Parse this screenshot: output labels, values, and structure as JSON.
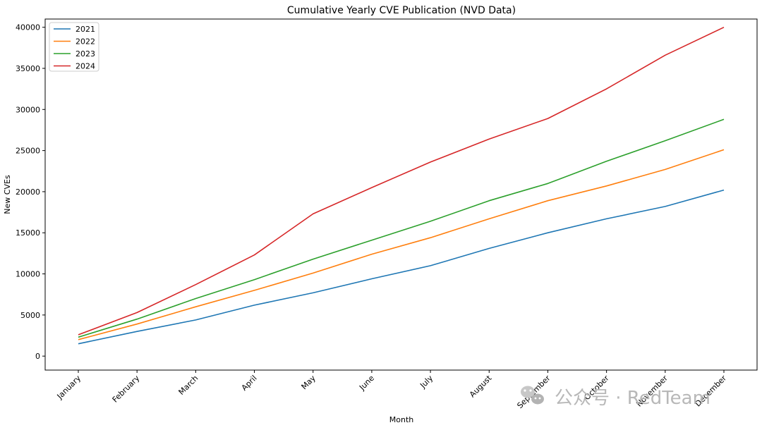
{
  "chart_data": {
    "type": "line",
    "title": "Cumulative Yearly CVE Publication (NVD Data)",
    "xlabel": "Month",
    "ylabel": "New CVEs",
    "categories": [
      "January",
      "February",
      "March",
      "April",
      "May",
      "June",
      "July",
      "August",
      "September",
      "October",
      "November",
      "December"
    ],
    "ylim": [
      -1700,
      41000
    ],
    "yticks": [
      0,
      5000,
      10000,
      15000,
      20000,
      25000,
      30000,
      35000,
      40000
    ],
    "grid": false,
    "legend_position": "top-left",
    "series": [
      {
        "name": "2021",
        "color": "#1f77b4",
        "values": [
          1500,
          3000,
          4400,
          6200,
          7700,
          9400,
          11000,
          13100,
          15000,
          16700,
          18200,
          20200
        ]
      },
      {
        "name": "2022",
        "color": "#ff7f0e",
        "values": [
          2000,
          3900,
          6000,
          8000,
          10100,
          12400,
          14400,
          16700,
          18900,
          20700,
          22700,
          25100
        ]
      },
      {
        "name": "2023",
        "color": "#2ca02c",
        "values": [
          2300,
          4500,
          7000,
          9300,
          11800,
          14100,
          16400,
          18900,
          21000,
          23700,
          26200,
          28800
        ]
      },
      {
        "name": "2024",
        "color": "#d62728",
        "values": [
          2600,
          5300,
          8700,
          12300,
          17300,
          20500,
          23600,
          26400,
          28900,
          32500,
          36600,
          40000
        ]
      }
    ]
  },
  "watermark": {
    "text": "公众号 · RedTeam",
    "icon": "wechat-icon"
  }
}
